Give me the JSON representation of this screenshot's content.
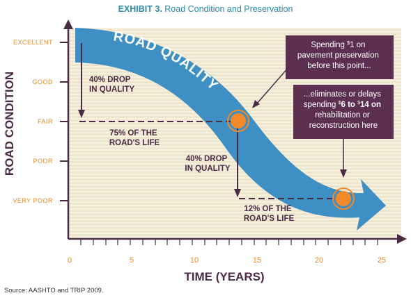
{
  "title": {
    "prefix": "EXHIBIT 3.",
    "text": " Road Condition and Preservation"
  },
  "y_axis": {
    "title": "ROAD CONDITION",
    "levels": [
      "EXCELLENT",
      "GOOD",
      "FAIR",
      "POOR",
      "VERY POOR"
    ]
  },
  "x_axis": {
    "title": "TIME (YEARS)",
    "ticks": [
      "0",
      "5",
      "10",
      "15",
      "20",
      "25"
    ]
  },
  "curve_label": "ROAD QUALITY",
  "annotations": {
    "drop1": [
      "40% DROP",
      "IN QUALITY"
    ],
    "life1": [
      "75% OF THE",
      "ROAD'S LIFE"
    ],
    "drop2": [
      "40% DROP",
      "IN QUALITY"
    ],
    "life2": [
      "12% OF THE",
      "ROAD'S LIFE"
    ]
  },
  "box1": {
    "line1_a": "Spending ",
    "line1_sup": "$",
    "line1_b": "1 on",
    "line2": "pavement preservation",
    "line3": "before this point..."
  },
  "box2": {
    "line1": "...eliminates or delays",
    "line2_a": "spending ",
    "line2_sup1": "$",
    "line2_b": "6 to ",
    "line2_sup2": "$",
    "line2_c": "14 on",
    "line3": "rehabilitation or",
    "line4": "reconstruction here"
  },
  "source": "Source: AASHTO and TRIP 2009.",
  "colors": {
    "background": "#ede6cc",
    "stripe": "#f6f1e0",
    "axis": "#4a2a44",
    "arrow": "#3d8fc4",
    "marker": "#f2892a",
    "box": "#5c2f50",
    "tick_label": "#e08a28",
    "title": "#2a8aa8"
  }
}
